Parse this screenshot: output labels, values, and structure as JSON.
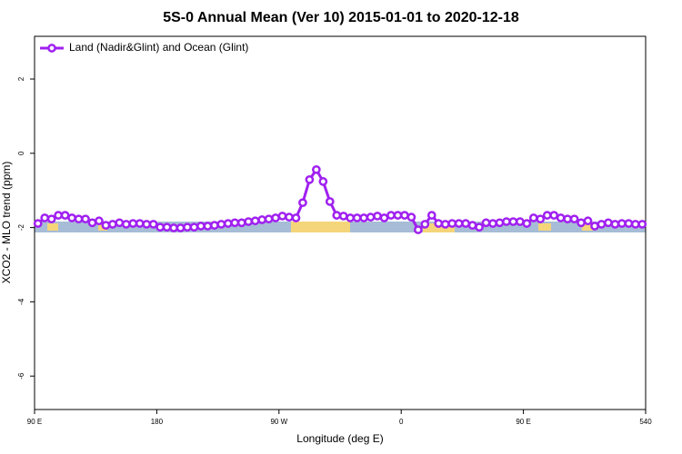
{
  "chart_data": {
    "type": "line",
    "title": "5S-0 Annual Mean (Ver 10)   2015-01-01 to 2020-12-18",
    "x_label": "Longitude (deg E)",
    "y_label": "XCO2 - MLO trend (ppm)",
    "legend": "top-left",
    "xlim": [
      90,
      540
    ],
    "ylim": [
      -6.9,
      3.15
    ],
    "xticks": [
      {
        "value": 90,
        "label": "90 E"
      },
      180,
      {
        "value": 270,
        "label": "90 W"
      },
      {
        "value": 360,
        "label": "0"
      },
      {
        "value": 450,
        "label": "90 E"
      },
      540
    ],
    "yticks": [
      -6,
      -4,
      -2,
      0,
      2
    ],
    "x": [
      92.5,
      97.5,
      102.5,
      107.5,
      112.5,
      117.5,
      122.5,
      127.5,
      132.5,
      137.5,
      142.5,
      147.5,
      152.5,
      157.5,
      162.5,
      167.5,
      172.5,
      177.5,
      182.5,
      187.5,
      192.5,
      197.5,
      202.5,
      207.5,
      212.5,
      217.5,
      222.5,
      227.5,
      232.5,
      237.5,
      242.5,
      247.5,
      252.5,
      257.5,
      262.5,
      267.5,
      272.5,
      277.5,
      282.5,
      287.5,
      292.5,
      297.5,
      302.5,
      307.5,
      312.5,
      317.5,
      322.5,
      327.5,
      332.5,
      337.5,
      342.5,
      347.5,
      352.5,
      357.5,
      362.5,
      367.5,
      372.5,
      377.5,
      382.5,
      387.5,
      392.5,
      397.5,
      402.5,
      407.5,
      412.5,
      417.5,
      422.5,
      427.5,
      432.5,
      437.5,
      442.5,
      447.5,
      452.5,
      457.5,
      462.5,
      467.5,
      472.5,
      477.5,
      482.5,
      487.5,
      492.5,
      497.5,
      502.5,
      507.5,
      512.5,
      517.5,
      522.5,
      527.5,
      532.5,
      537.5
    ],
    "series": [
      {
        "name": "Land (Nadir&Glint) and Ocean (Glint)",
        "color": "#a020f0",
        "values": [
          -1.89,
          -1.74,
          -1.77,
          -1.67,
          -1.67,
          -1.74,
          -1.77,
          -1.77,
          -1.87,
          -1.82,
          -1.94,
          -1.91,
          -1.87,
          -1.91,
          -1.89,
          -1.89,
          -1.91,
          -1.91,
          -1.99,
          -1.99,
          -2.01,
          -2.01,
          -1.99,
          -1.99,
          -1.96,
          -1.96,
          -1.94,
          -1.91,
          -1.89,
          -1.87,
          -1.87,
          -1.84,
          -1.82,
          -1.79,
          -1.77,
          -1.74,
          -1.69,
          -1.72,
          -1.74,
          -1.33,
          -0.71,
          -0.44,
          -0.76,
          -1.3,
          -1.67,
          -1.69,
          -1.74,
          -1.74,
          -1.74,
          -1.72,
          -1.69,
          -1.74,
          -1.67,
          -1.67,
          -1.67,
          -1.72,
          -2.06,
          -1.91,
          -1.67,
          -1.89,
          -1.91,
          -1.89,
          -1.89,
          -1.89,
          -1.94,
          -1.99,
          -1.87,
          -1.89,
          -1.87,
          -1.84,
          -1.84,
          -1.84,
          -1.89,
          -1.74,
          -1.77,
          -1.67,
          -1.67,
          -1.74,
          -1.77,
          -1.77,
          -1.87,
          -1.82,
          -1.96,
          -1.91,
          -1.87,
          -1.91,
          -1.89,
          -1.89,
          -1.91,
          -1.91
        ]
      }
    ]
  }
}
